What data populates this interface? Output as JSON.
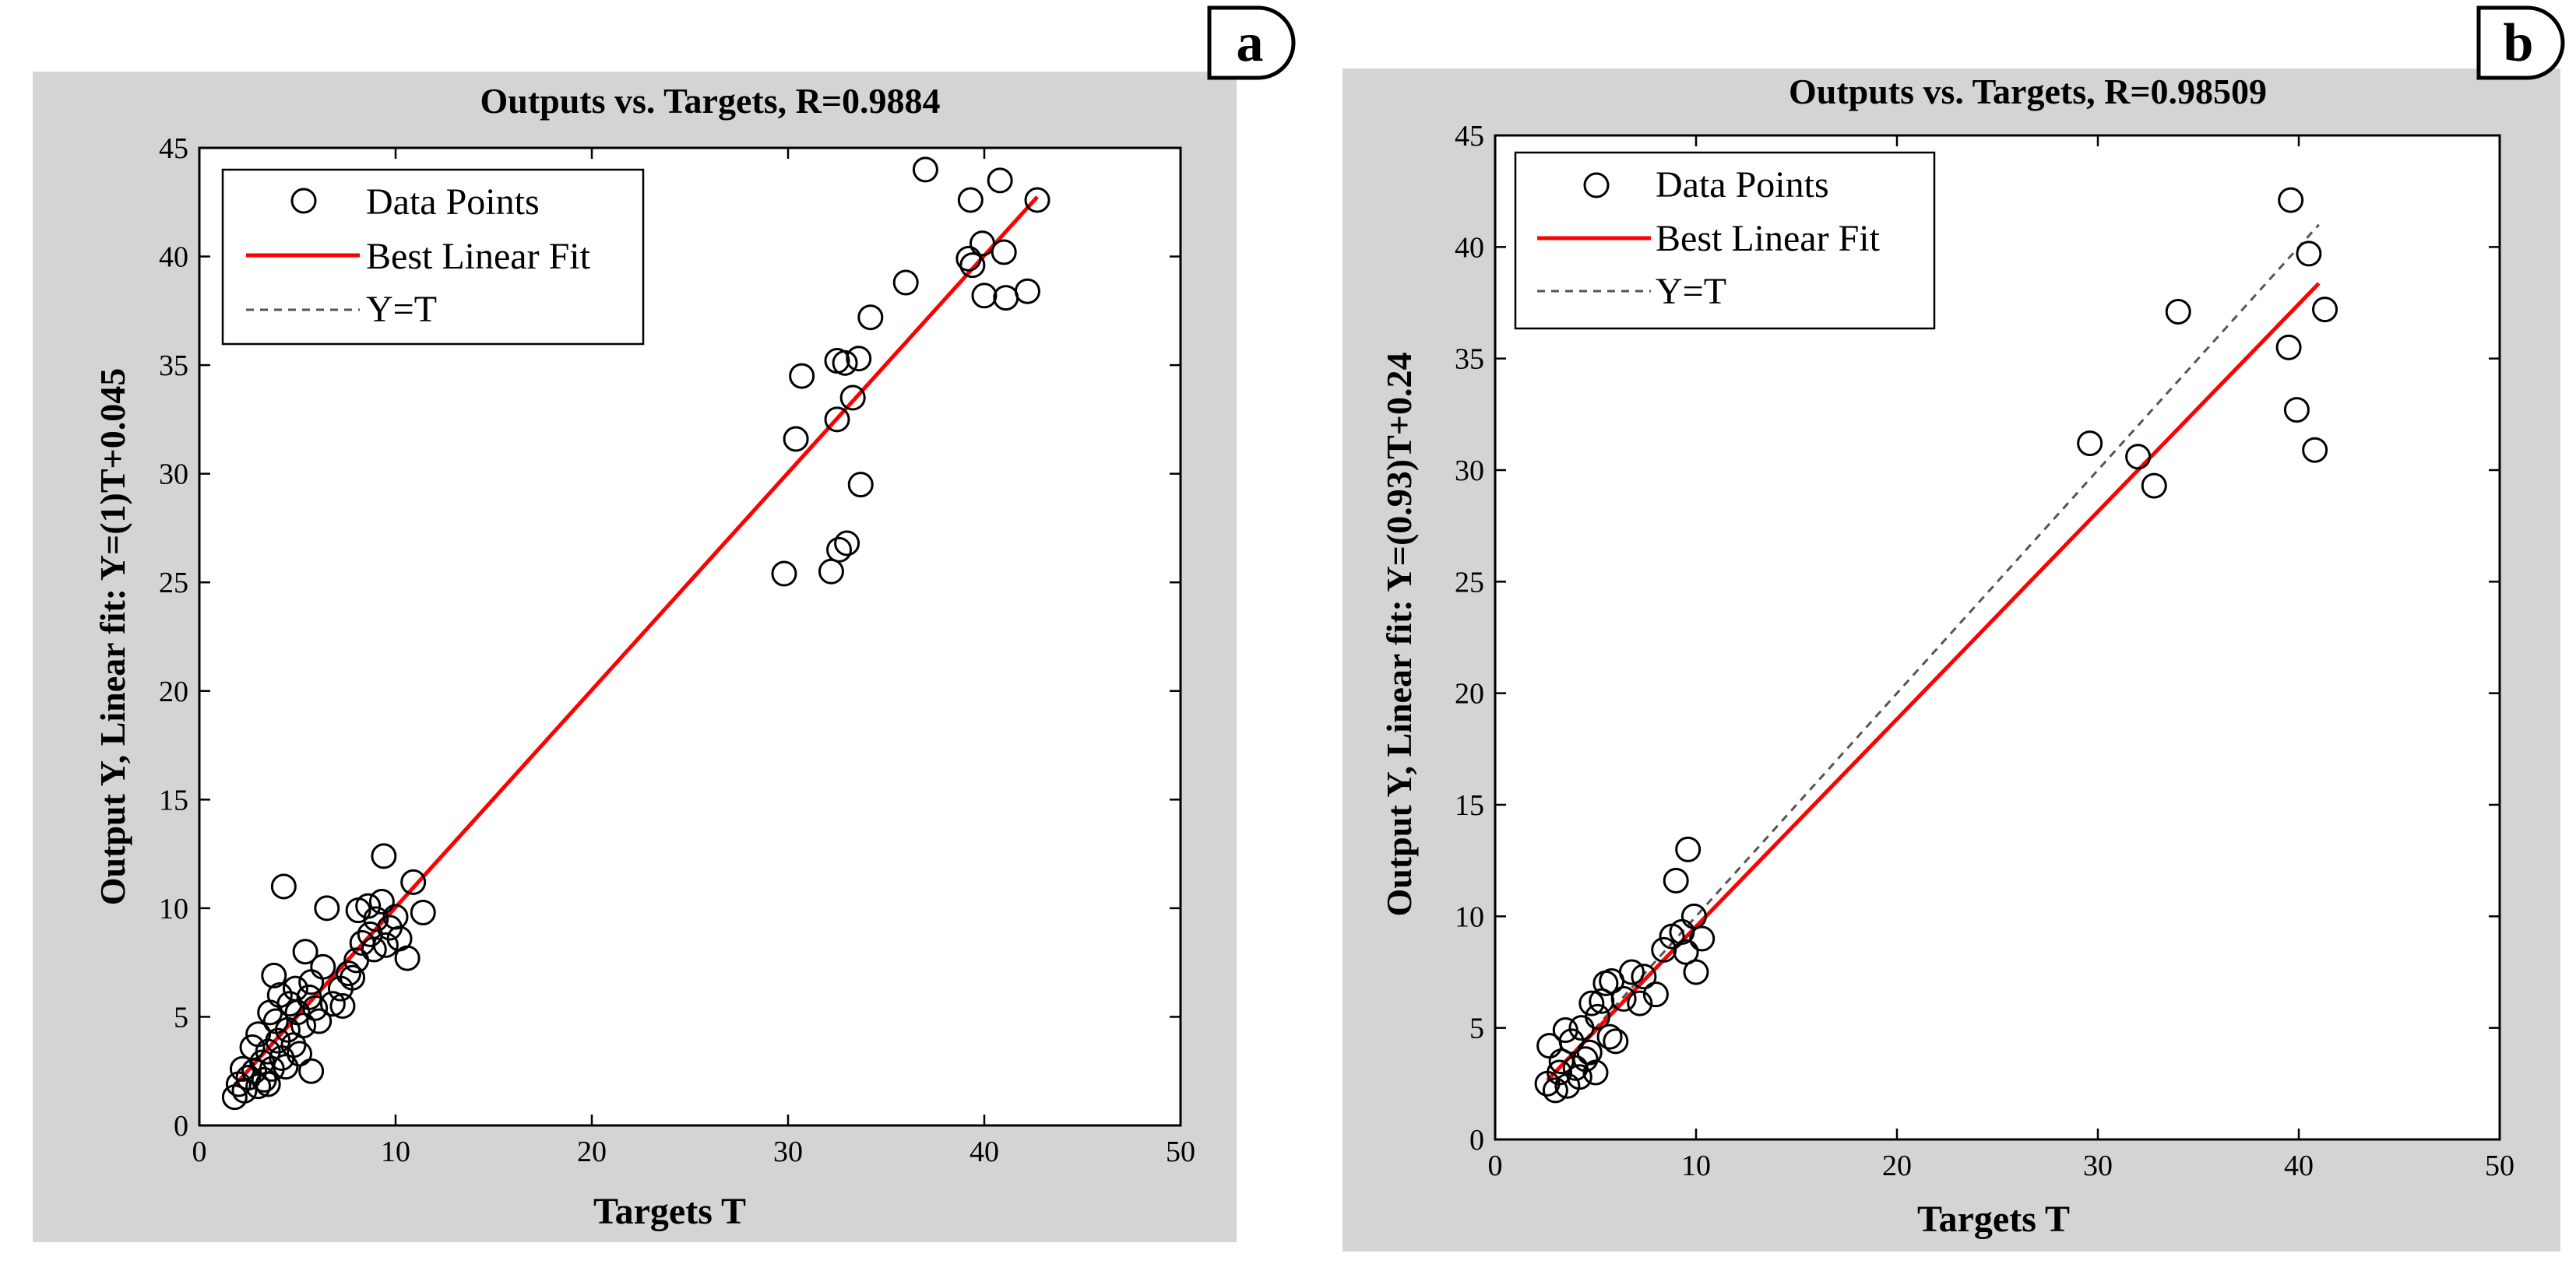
{
  "chart_data": [
    {
      "type": "scatter",
      "panel_label": "a",
      "title": "Outputs vs. Targets, R=0.9884",
      "xlabel": "Targets T",
      "ylabel": "Output Y, Linear fit: Y=(1)T+0.045",
      "xlim": [
        0,
        50
      ],
      "ylim": [
        0,
        45
      ],
      "xticks": [
        0,
        10,
        20,
        30,
        40,
        50
      ],
      "yticks": [
        0,
        5,
        10,
        15,
        20,
        25,
        30,
        35,
        40,
        45
      ],
      "legend": {
        "position": "top-left",
        "entries": [
          "Data Points",
          "Best Linear Fit",
          "Y=T"
        ]
      },
      "fit": {
        "slope": 1.0,
        "intercept": 0.045,
        "x_range": [
          1.8,
          42.7
        ]
      },
      "identity_line": {
        "x_range": [
          1.8,
          42.7
        ]
      },
      "colors": {
        "fit": "#ff0000",
        "identity": "#555555",
        "points": "#000000"
      },
      "points": [
        [
          1.8,
          1.3
        ],
        [
          2.0,
          1.9
        ],
        [
          2.3,
          1.6
        ],
        [
          2.5,
          2.2
        ],
        [
          2.8,
          2.5
        ],
        [
          3.0,
          1.8
        ],
        [
          3.2,
          2.9
        ],
        [
          3.5,
          3.4
        ],
        [
          3.7,
          2.6
        ],
        [
          4.0,
          3.9
        ],
        [
          4.2,
          3.1
        ],
        [
          4.5,
          4.4
        ],
        [
          4.8,
          3.7
        ],
        [
          5.0,
          5.2
        ],
        [
          5.3,
          4.6
        ],
        [
          5.6,
          5.9
        ],
        [
          5.9,
          5.4
        ],
        [
          6.1,
          4.8
        ],
        [
          2.7,
          3.6
        ],
        [
          3.3,
          2.1
        ],
        [
          3.9,
          4.8
        ],
        [
          4.6,
          5.6
        ],
        [
          5.1,
          3.3
        ],
        [
          2.2,
          2.6
        ],
        [
          3.0,
          4.2
        ],
        [
          3.6,
          5.2
        ],
        [
          4.1,
          6.0
        ],
        [
          4.4,
          2.7
        ],
        [
          5.7,
          6.6
        ],
        [
          4.9,
          6.3
        ],
        [
          3.8,
          6.9
        ],
        [
          4.3,
          11.0
        ],
        [
          5.7,
          2.5
        ],
        [
          3.5,
          1.9
        ],
        [
          6.5,
          10.0
        ],
        [
          6.8,
          5.6
        ],
        [
          7.2,
          6.3
        ],
        [
          7.6,
          7.0
        ],
        [
          8.0,
          7.6
        ],
        [
          8.3,
          8.4
        ],
        [
          8.7,
          8.8
        ],
        [
          9.0,
          9.5
        ],
        [
          9.3,
          10.3
        ],
        [
          9.5,
          8.3
        ],
        [
          9.7,
          9.1
        ],
        [
          10.2,
          8.6
        ],
        [
          10.6,
          7.7
        ],
        [
          10.9,
          11.2
        ],
        [
          11.4,
          9.8
        ],
        [
          9.4,
          12.4
        ],
        [
          7.3,
          5.5
        ],
        [
          8.1,
          9.9
        ],
        [
          8.6,
          10.1
        ],
        [
          5.4,
          8.0
        ],
        [
          6.3,
          7.3
        ],
        [
          7.8,
          6.8
        ],
        [
          8.9,
          8.1
        ],
        [
          10.0,
          9.6
        ],
        [
          29.8,
          25.4
        ],
        [
          30.4,
          31.6
        ],
        [
          30.7,
          34.5
        ],
        [
          32.2,
          25.5
        ],
        [
          32.5,
          32.5
        ],
        [
          32.6,
          26.5
        ],
        [
          32.5,
          35.2
        ],
        [
          33.0,
          26.8
        ],
        [
          32.9,
          35.1
        ],
        [
          33.3,
          33.5
        ],
        [
          33.6,
          35.3
        ],
        [
          33.7,
          29.5
        ],
        [
          34.2,
          37.2
        ],
        [
          36.0,
          38.8
        ],
        [
          37.0,
          44.0
        ],
        [
          39.2,
          39.9
        ],
        [
          39.3,
          42.6
        ],
        [
          39.4,
          39.6
        ],
        [
          39.9,
          40.6
        ],
        [
          40.0,
          38.2
        ],
        [
          40.8,
          43.5
        ],
        [
          41.0,
          40.2
        ],
        [
          41.1,
          38.1
        ],
        [
          42.2,
          38.4
        ],
        [
          42.7,
          42.6
        ]
      ]
    },
    {
      "type": "scatter",
      "panel_label": "b",
      "title": "Outputs vs. Targets, R=0.98509",
      "xlabel": "Targets T",
      "ylabel": "Output Y, Linear fit: Y=(0.93)T+0.24",
      "xlim": [
        0,
        50
      ],
      "ylim": [
        0,
        45
      ],
      "xticks": [
        0,
        10,
        20,
        30,
        40,
        50
      ],
      "yticks": [
        0,
        5,
        10,
        15,
        20,
        25,
        30,
        35,
        40,
        45
      ],
      "legend": {
        "position": "top-left",
        "entries": [
          "Data Points",
          "Best Linear Fit",
          "Y=T"
        ]
      },
      "fit": {
        "slope": 0.93,
        "intercept": 0.24,
        "x_range": [
          2.6,
          41.0
        ]
      },
      "identity_line": {
        "x_range": [
          2.6,
          41.0
        ]
      },
      "colors": {
        "fit": "#ff0000",
        "identity": "#555555",
        "points": "#000000"
      },
      "points": [
        [
          2.6,
          2.5
        ],
        [
          2.7,
          4.2
        ],
        [
          3.0,
          2.2
        ],
        [
          3.3,
          3.5
        ],
        [
          3.5,
          4.9
        ],
        [
          3.6,
          2.4
        ],
        [
          3.8,
          4.4
        ],
        [
          4.0,
          3.2
        ],
        [
          4.2,
          2.8
        ],
        [
          4.3,
          5.0
        ],
        [
          4.5,
          3.6
        ],
        [
          4.7,
          3.9
        ],
        [
          4.8,
          6.1
        ],
        [
          5.0,
          3.0
        ],
        [
          5.1,
          5.5
        ],
        [
          5.3,
          6.2
        ],
        [
          5.5,
          7.0
        ],
        [
          5.7,
          4.6
        ],
        [
          6.0,
          4.4
        ],
        [
          6.4,
          6.3
        ],
        [
          6.8,
          7.5
        ],
        [
          7.2,
          6.1
        ],
        [
          7.4,
          7.3
        ],
        [
          8.0,
          6.5
        ],
        [
          8.4,
          8.5
        ],
        [
          8.8,
          9.1
        ],
        [
          9.0,
          11.6
        ],
        [
          9.3,
          9.3
        ],
        [
          9.5,
          8.4
        ],
        [
          9.6,
          13.0
        ],
        [
          9.9,
          10.0
        ],
        [
          10.0,
          7.5
        ],
        [
          10.3,
          9.0
        ],
        [
          5.8,
          7.1
        ],
        [
          3.2,
          3.0
        ],
        [
          29.6,
          31.2
        ],
        [
          32.0,
          30.6
        ],
        [
          32.8,
          29.3
        ],
        [
          34.0,
          37.1
        ],
        [
          39.5,
          35.5
        ],
        [
          39.6,
          42.1
        ],
        [
          39.9,
          32.7
        ],
        [
          40.5,
          39.7
        ],
        [
          40.8,
          30.9
        ],
        [
          41.3,
          37.2
        ]
      ]
    }
  ]
}
